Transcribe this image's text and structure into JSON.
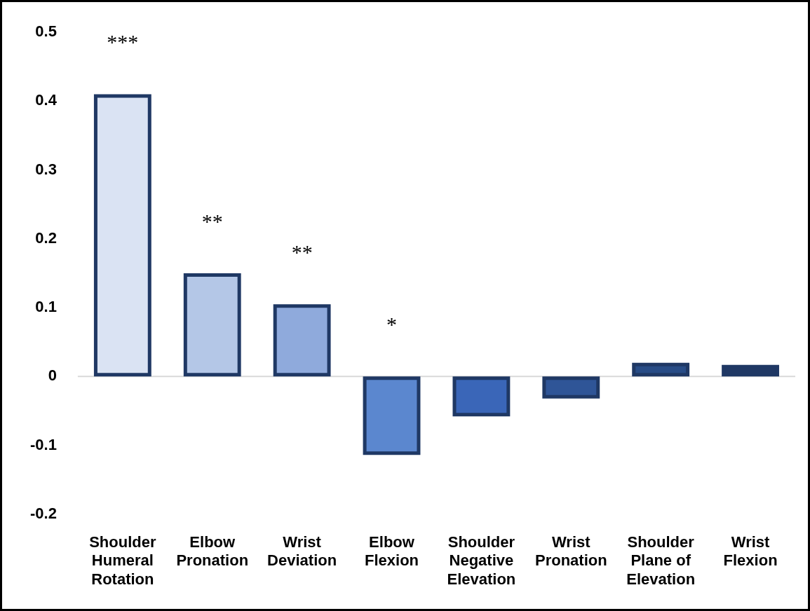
{
  "chart_data": {
    "type": "bar",
    "categories": [
      "Shoulder Humeral Rotation",
      "Elbow Pronation",
      "Wrist Deviation",
      "Elbow Flexion",
      "Shoulder Negative Elevation",
      "Wrist Pronation",
      "Shoulder Plane of Elevation",
      "Wrist Flexion"
    ],
    "values": [
      0.41,
      0.15,
      0.105,
      -0.114,
      -0.058,
      -0.032,
      0.02,
      0.017
    ],
    "colors": [
      "#dae3f3",
      "#b4c7e7",
      "#8faadc",
      "#5b87cf",
      "#3a66b8",
      "#2f5597",
      "#284c86",
      "#203864"
    ],
    "ylim": [
      -0.2,
      0.5
    ],
    "yticks": [
      -0.2,
      -0.1,
      0,
      0.1,
      0.2,
      0.3,
      0.4,
      0.5
    ],
    "ref_lines": [
      {
        "axis": "y",
        "value": 0,
        "color": "#d9d9d9"
      }
    ],
    "annotations": [
      {
        "text": "***",
        "x": "Shoulder Humeral Rotation",
        "y": 0.41
      },
      {
        "text": "**",
        "x": "Elbow Pronation",
        "y": 0.15
      },
      {
        "text": "**",
        "x": "Wrist Deviation",
        "y": 0.105
      },
      {
        "text": "*",
        "x": "Elbow Flexion",
        "y": 0
      }
    ]
  }
}
